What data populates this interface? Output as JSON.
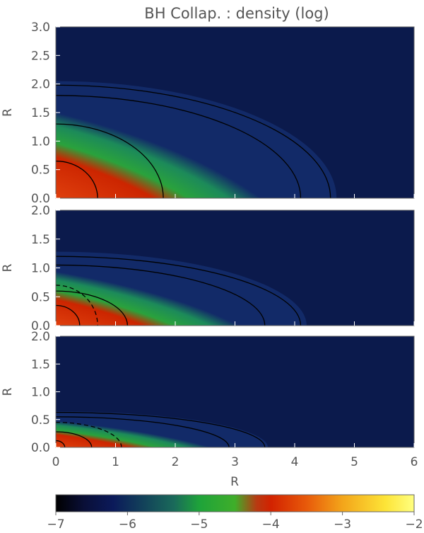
{
  "chart_data": {
    "type": "heatmap",
    "title": "BH Collap. : density (log)",
    "xlabel": "R",
    "xlim": [
      0,
      6
    ],
    "x_ticks": [
      "0",
      "1",
      "2",
      "3",
      "4",
      "5",
      "6"
    ],
    "panels": [
      {
        "ylabel": "R",
        "ylim": [
          0,
          3.0
        ],
        "y_ticks": [
          "0.0",
          "0.5",
          "1.0",
          "1.5",
          "2.0",
          "2.5",
          "3.0"
        ],
        "surface": {
          "a": 4.7,
          "b": 2.05
        },
        "contours": [
          {
            "a": 0.7,
            "b": 0.65,
            "style": "solid"
          },
          {
            "a": 1.8,
            "b": 1.3,
            "style": "solid"
          },
          {
            "a": 4.1,
            "b": 1.8,
            "style": "solid"
          },
          {
            "a": 4.6,
            "b": 1.98,
            "style": "solid"
          }
        ]
      },
      {
        "ylabel": "R",
        "ylim": [
          0,
          2.0
        ],
        "y_ticks": [
          "0.0",
          "0.5",
          "1.0",
          "1.5",
          "2.0"
        ],
        "surface": {
          "a": 4.2,
          "b": 1.28
        },
        "contours": [
          {
            "a": 0.4,
            "b": 0.35,
            "style": "solid"
          },
          {
            "a": 0.7,
            "b": 0.7,
            "style": "dashed"
          },
          {
            "a": 1.2,
            "b": 0.6,
            "style": "solid"
          },
          {
            "a": 3.5,
            "b": 1.05,
            "style": "solid"
          },
          {
            "a": 4.1,
            "b": 1.2,
            "style": "solid"
          }
        ]
      },
      {
        "ylabel": "R",
        "ylim": [
          0,
          2.0
        ],
        "y_ticks": [
          "0.0",
          "0.5",
          "1.0",
          "1.5",
          "2.0"
        ],
        "surface": {
          "a": 3.55,
          "b": 0.65
        },
        "contours": [
          {
            "a": 0.15,
            "b": 0.12,
            "style": "solid"
          },
          {
            "a": 0.6,
            "b": 0.28,
            "style": "solid"
          },
          {
            "a": 1.1,
            "b": 0.45,
            "style": "dashed"
          },
          {
            "a": 2.9,
            "b": 0.55,
            "style": "solid"
          },
          {
            "a": 3.5,
            "b": 0.63,
            "style": "solid"
          }
        ]
      }
    ],
    "colorbar": {
      "range": [
        -7,
        -2
      ],
      "ticks": [
        "−7",
        "−6",
        "−5",
        "−4",
        "−3",
        "−2"
      ],
      "colors": [
        "#000000",
        "#0a0f38",
        "#0b1a5a",
        "#1a6a5a",
        "#1ea33a",
        "#3fae2a",
        "#b83a12",
        "#d22200",
        "#e85a0a",
        "#f3a51a",
        "#fde437",
        "#ffff80"
      ]
    }
  }
}
